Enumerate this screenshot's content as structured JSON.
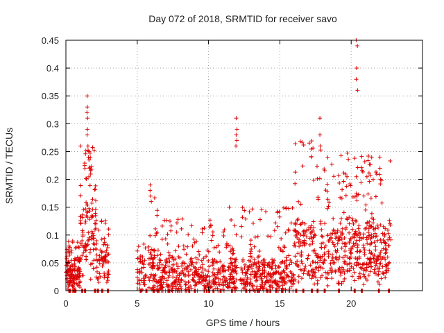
{
  "chart_data": {
    "type": "scatter",
    "title": "Day 072 of 2018, SRMTID for receiver savo",
    "xlabel": "GPS time / hours",
    "ylabel": "SRMTID / TECUs",
    "xlim": [
      0,
      25
    ],
    "ylim": [
      0,
      0.45
    ],
    "x_ticks": [
      0,
      5,
      10,
      15,
      20
    ],
    "x_tick_labels": [
      "0",
      "5",
      "10",
      "15",
      "20"
    ],
    "y_ticks": [
      0,
      0.05,
      0.1,
      0.15,
      0.2,
      0.25,
      0.3,
      0.35,
      0.4,
      0.45
    ],
    "y_tick_labels": [
      "0",
      "0.05",
      "0.1",
      "0.15",
      "0.2",
      "0.25",
      "0.3",
      "0.35",
      "0.4",
      "0.45"
    ],
    "grid": true,
    "marker": "plus",
    "color": "#dd0000",
    "series": [
      {
        "name": "SRMTID",
        "clusters": [
          {
            "x_range": [
              0.0,
              1.0
            ],
            "count": 140,
            "y_base": 0.0,
            "y_typ": 0.05,
            "y_max": 0.09
          },
          {
            "x_range": [
              1.0,
              2.1
            ],
            "count": 110,
            "y_base": 0.03,
            "y_typ": 0.16,
            "y_max": 0.26
          },
          {
            "x_range": [
              2.1,
              3.0
            ],
            "count": 70,
            "y_base": 0.02,
            "y_typ": 0.08,
            "y_max": 0.13
          },
          {
            "x_range": [
              5.0,
              5.6
            ],
            "count": 40,
            "y_base": 0.0,
            "y_typ": 0.05,
            "y_max": 0.09
          },
          {
            "x_range": [
              5.8,
              6.6
            ],
            "count": 70,
            "y_base": 0.0,
            "y_typ": 0.07,
            "y_max": 0.18
          },
          {
            "x_range": [
              6.6,
              12.0
            ],
            "count": 420,
            "y_base": 0.0,
            "y_typ": 0.05,
            "y_max": 0.13
          },
          {
            "x_range": [
              12.2,
              16.0
            ],
            "count": 300,
            "y_base": 0.0,
            "y_typ": 0.05,
            "y_max": 0.15
          },
          {
            "x_range": [
              16.0,
              20.0
            ],
            "count": 320,
            "y_base": 0.02,
            "y_typ": 0.12,
            "y_max": 0.27
          },
          {
            "x_range": [
              20.0,
              22.8
            ],
            "count": 260,
            "y_base": 0.02,
            "y_typ": 0.12,
            "y_max": 0.25
          }
        ],
        "spikes": [
          {
            "x": 1.5,
            "y": [
              0.26,
              0.28,
              0.29,
              0.31,
              0.32,
              0.33,
              0.35
            ]
          },
          {
            "x": 1.6,
            "y": [
              0.22,
              0.24,
              0.25
            ]
          },
          {
            "x": 5.95,
            "y": [
              0.16,
              0.17,
              0.18,
              0.19
            ]
          },
          {
            "x": 11.5,
            "y": [
              0.15
            ]
          },
          {
            "x": 11.95,
            "y": [
              0.26,
              0.27,
              0.28,
              0.29,
              0.31
            ]
          },
          {
            "x": 17.85,
            "y": [
              0.26,
              0.28,
              0.31
            ]
          },
          {
            "x": 20.4,
            "y": [
              0.36,
              0.38,
              0.4,
              0.44,
              0.45
            ]
          },
          {
            "x": 22.05,
            "y": [
              0.2,
              0.22,
              0.24
            ]
          }
        ],
        "zero_run_x": [
          0.2,
          0.6,
          1.1,
          1.3,
          2.0,
          2.2,
          2.5,
          2.9,
          5.2,
          5.6,
          6.1,
          6.4,
          7.2,
          8.6,
          9.0,
          10.0,
          10.3,
          10.8,
          11.6,
          12.6,
          13.4,
          14.1,
          14.7,
          15.1,
          16.1,
          16.6,
          17.2,
          17.6,
          18.1,
          19.1,
          20.2,
          20.7,
          21.9,
          22.6
        ]
      }
    ]
  }
}
